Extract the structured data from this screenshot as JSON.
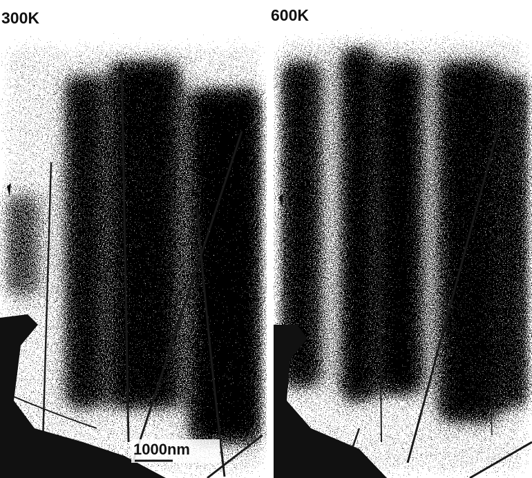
{
  "panels": [
    {
      "label": "300K"
    },
    {
      "label": "600K"
    }
  ],
  "scale_bar": {
    "label": "1000nm"
  }
}
